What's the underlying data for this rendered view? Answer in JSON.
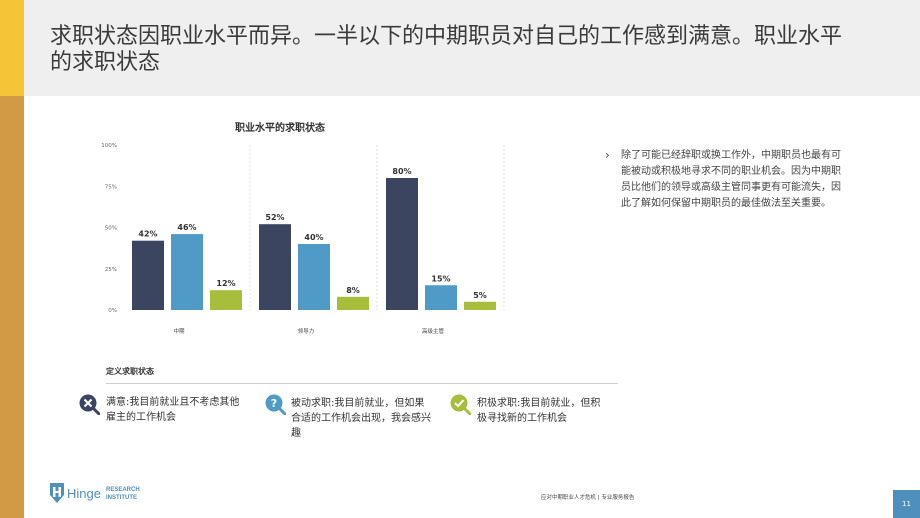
{
  "page": {
    "title": "求职状态因职业水平而异。一半以下的中期职员对自己的工作感到满意。职业水平的求职状态"
  },
  "chart_data": {
    "type": "bar",
    "title": "职业水平的求职状态",
    "categories": [
      "中期",
      "领导力",
      "高级主管"
    ],
    "series": [
      {
        "name": "满意",
        "color": "#3b4560",
        "values": [
          42,
          52,
          80
        ]
      },
      {
        "name": "被动求职",
        "color": "#4f9ac7",
        "values": [
          46,
          40,
          15
        ]
      },
      {
        "name": "积极求职",
        "color": "#a7bd3c",
        "values": [
          12,
          8,
          5
        ]
      }
    ],
    "value_labels": [
      [
        "42%",
        "52%",
        "80%"
      ],
      [
        "46%",
        "40%",
        "15%"
      ],
      [
        "12%",
        "8%",
        "5%"
      ]
    ],
    "yticks": [
      0,
      25,
      50,
      75,
      100
    ],
    "ytick_labels": [
      "0%",
      "25%",
      "50%",
      "75%",
      "100%"
    ],
    "ylim": [
      0,
      100
    ],
    "xlabel": "",
    "ylabel": ""
  },
  "sidebar": {
    "bullet": "›",
    "text": "除了可能已经辞职或换工作外，中期职员也最有可能被动或积极地寻求不同的职业机会。因为中期职员比他们的领导或高级主管同事更有可能流失，因此了解如何保留中期职员的最佳做法至关重要。"
  },
  "definitions": {
    "title": "定义求职状态",
    "items": [
      {
        "icon": "x-search-icon",
        "color": "#3b4560",
        "text": "满意:我目前就业且不考虑其他雇主的工作机会"
      },
      {
        "icon": "question-search-icon",
        "color": "#4f9ac7",
        "text": "被动求职:我目前就业，但如果合适的工作机会出现，我会感兴趣"
      },
      {
        "icon": "check-search-icon",
        "color": "#a7bd3c",
        "text": "积极求职:我目前就业，但积极寻找新的工作机会"
      }
    ]
  },
  "footer": {
    "logo_word": "Hinge",
    "logo_line1": "RESEARCH",
    "logo_line2": "INSTITUTE",
    "report": "应对中期职业人才危机 | 专业服务报告",
    "page_number": "11"
  }
}
